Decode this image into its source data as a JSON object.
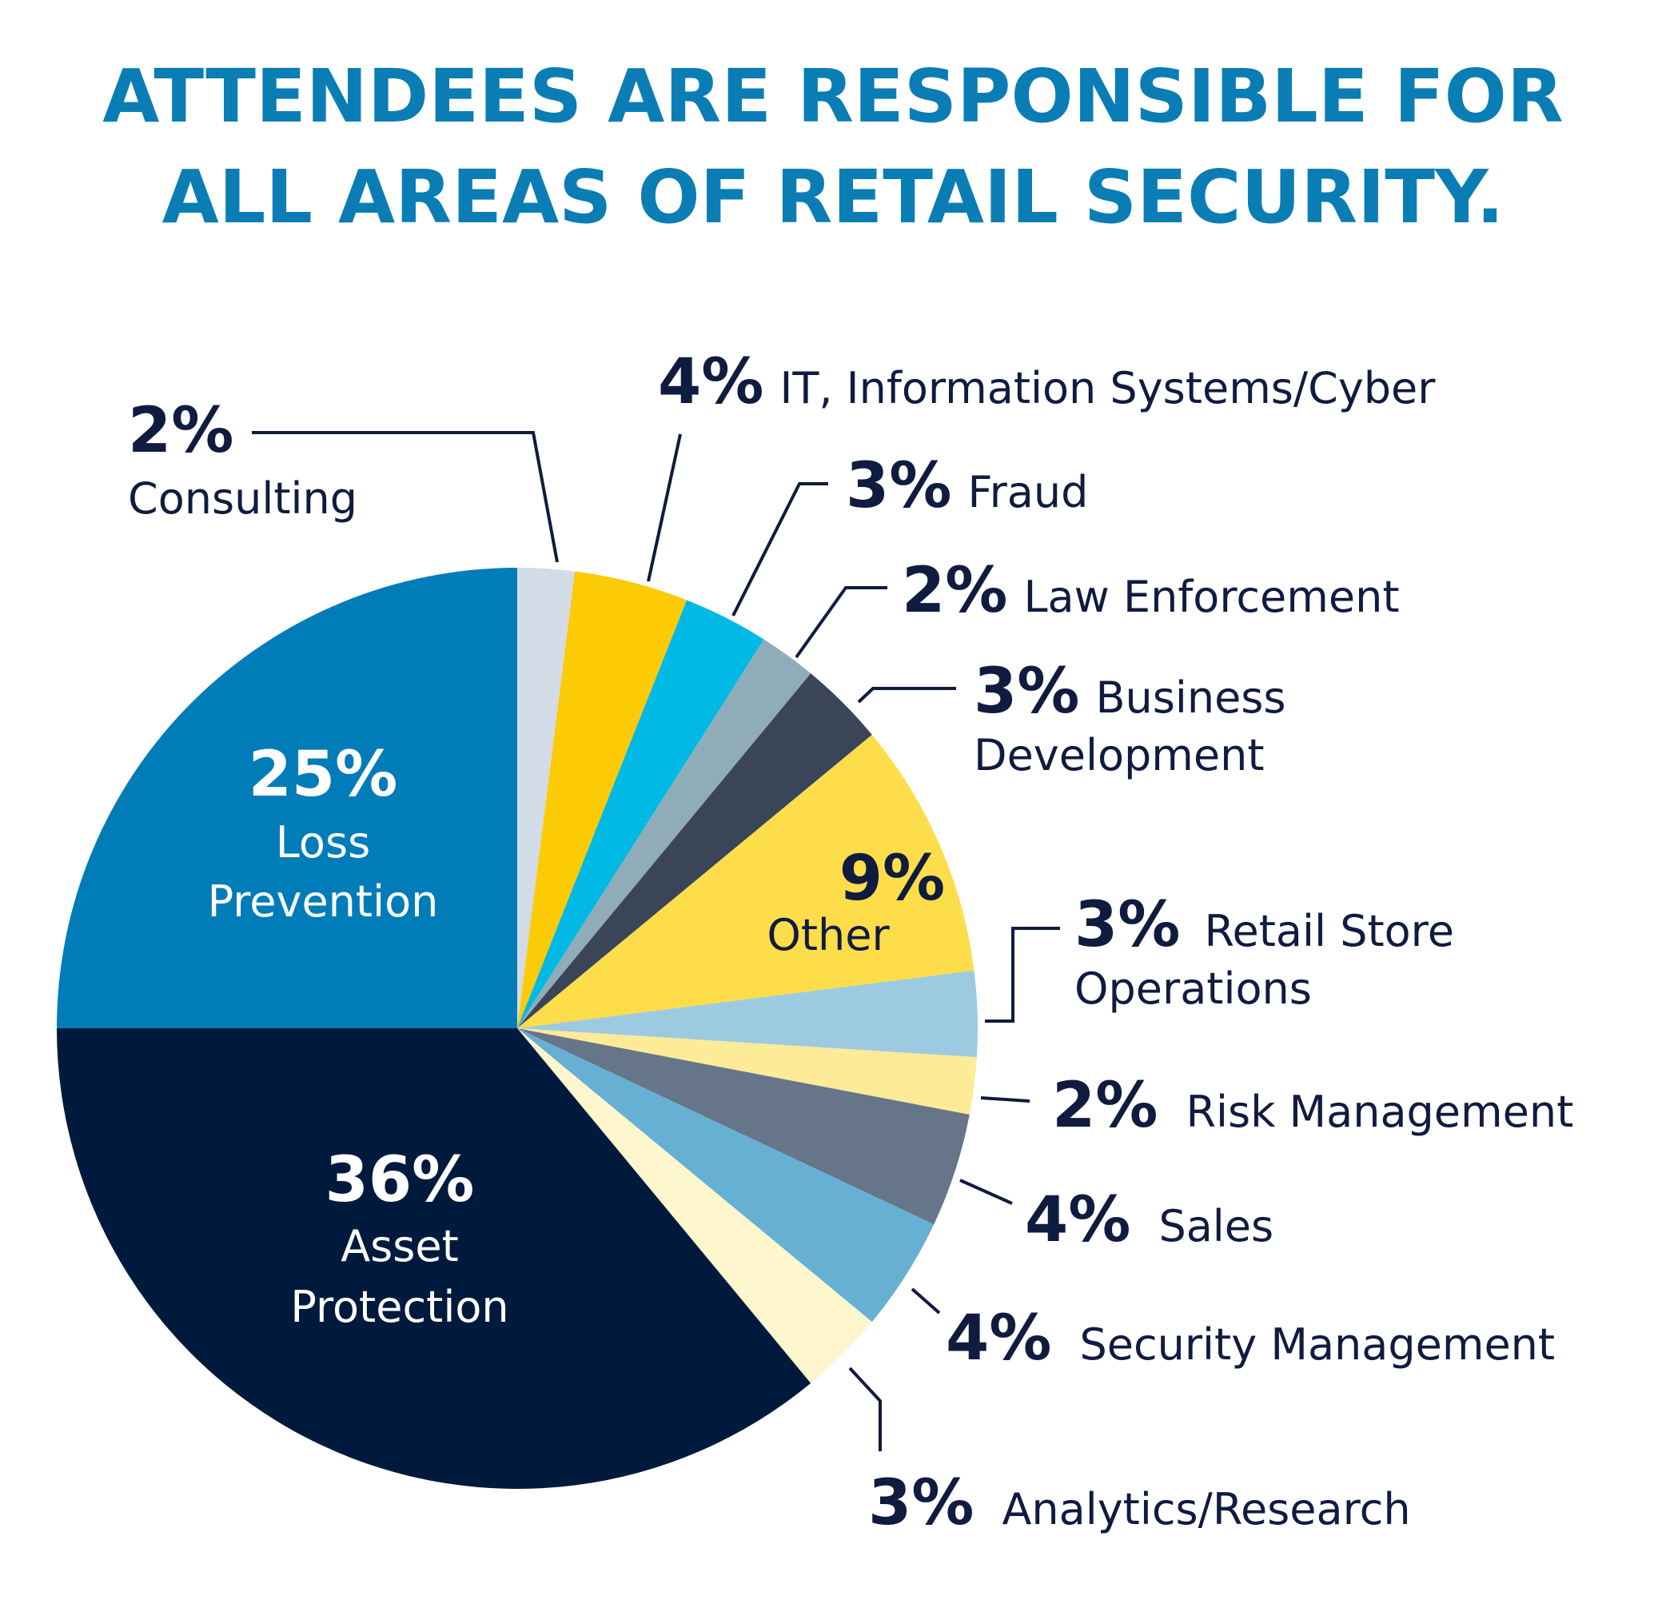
{
  "chart_data": {
    "type": "pie",
    "title": "ATTENDEES ARE RESPONSIBLE FOR ALL AREAS OF RETAIL SECURITY.",
    "title_lines": [
      "ATTENDEES ARE RESPONSIBLE FOR",
      "ALL AREAS OF RETAIL SECURITY."
    ],
    "start_angle_deg": 0,
    "direction": "clockwise",
    "slices": [
      {
        "label": "Consulting",
        "value": 2,
        "pct_text": "2%",
        "label_lines": [
          "Consulting"
        ],
        "color": "#d3dce6"
      },
      {
        "label": "IT, Information Systems/Cyber",
        "value": 4,
        "pct_text": "4%",
        "label_lines": [
          "IT, Information Systems/Cyber"
        ],
        "color": "#fccb06"
      },
      {
        "label": "Fraud",
        "value": 3,
        "pct_text": "3%",
        "label_lines": [
          "Fraud"
        ],
        "color": "#00b9e4"
      },
      {
        "label": "Law Enforcement",
        "value": 2,
        "pct_text": "2%",
        "label_lines": [
          "Law Enforcement"
        ],
        "color": "#8facb8"
      },
      {
        "label": "Business Development",
        "value": 3,
        "pct_text": "3%",
        "label_lines": [
          "Business",
          "Development"
        ],
        "color": "#3a4558"
      },
      {
        "label": "Other",
        "value": 9,
        "pct_text": "9%",
        "label_lines": [
          "Other"
        ],
        "color": "#fedd4a"
      },
      {
        "label": "Retail Store Operations",
        "value": 3,
        "pct_text": "3%",
        "label_lines": [
          "Retail Store",
          "Operations"
        ],
        "color": "#9ccbe1"
      },
      {
        "label": "Risk Management",
        "value": 2,
        "pct_text": "2%",
        "label_lines": [
          "Risk Management"
        ],
        "color": "#fdeb98"
      },
      {
        "label": "Sales",
        "value": 4,
        "pct_text": "4%",
        "label_lines": [
          "Sales"
        ],
        "color": "#667589"
      },
      {
        "label": "Security Management",
        "value": 4,
        "pct_text": "4%",
        "label_lines": [
          "Security Management"
        ],
        "color": "#66b0d3"
      },
      {
        "label": "Analytics/Research",
        "value": 3,
        "pct_text": "3%",
        "label_lines": [
          "Analytics/Research"
        ],
        "color": "#fef6cc"
      },
      {
        "label": "Asset Protection",
        "value": 36,
        "pct_text": "36%",
        "label_lines": [
          "Asset",
          "Protection"
        ],
        "color": "#001a3d"
      },
      {
        "label": "Loss Prevention",
        "value": 25,
        "pct_text": "25%",
        "label_lines": [
          "Loss",
          "Prevention"
        ],
        "color": "#007cb8"
      }
    ]
  }
}
